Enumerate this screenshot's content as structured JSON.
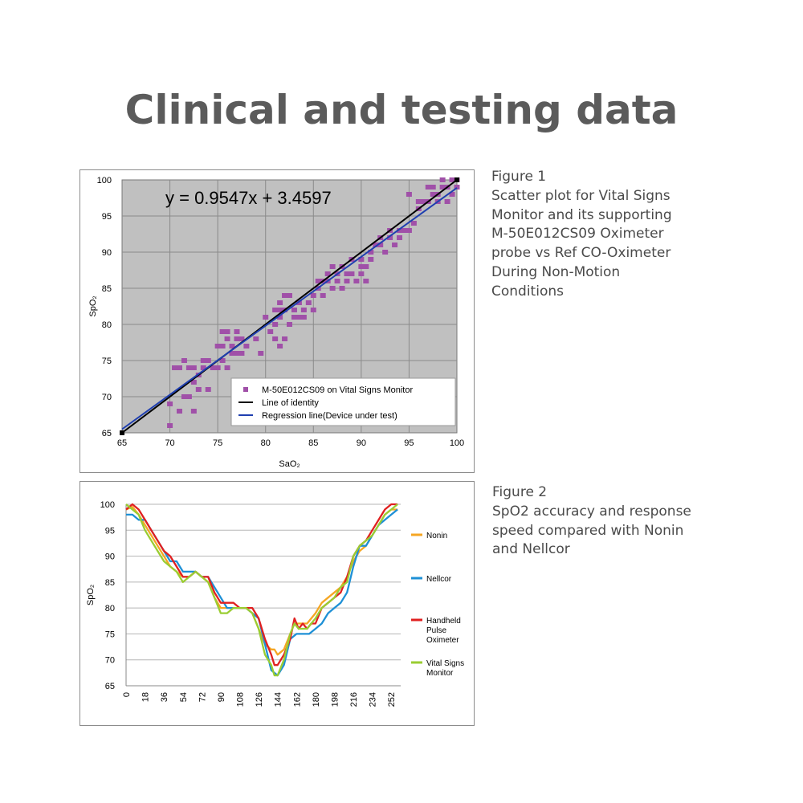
{
  "page": {
    "title": "Clinical and testing data"
  },
  "figure1": {
    "caption": {
      "label": "Figure 1",
      "lines": [
        "Scatter plot for Vital Signs",
        "Monitor and its supporting",
        "M-50E012CS09 Oximeter",
        "probe vs Ref CO-Oximeter",
        "During Non-Motion",
        "Conditions"
      ]
    }
  },
  "figure2": {
    "caption": {
      "label": "Figure 2",
      "lines": [
        "SpO2 accuracy and response",
        "speed compared with Nonin",
        "and Nellcor"
      ]
    }
  },
  "chart_data": [
    {
      "type": "scatter",
      "xlabel": "SaO₂",
      "ylabel": "SpO₂",
      "xlim": [
        65,
        100
      ],
      "ylim": [
        65,
        100
      ],
      "xticks": [
        65,
        70,
        75,
        80,
        85,
        90,
        95,
        100
      ],
      "yticks": [
        65,
        70,
        75,
        80,
        85,
        90,
        95,
        100
      ],
      "grid": true,
      "plot_background": "#c0c0c0",
      "equation": "y = 0.9547x + 3.4597",
      "legend_position": "bottom-right",
      "series": [
        {
          "name": "M-50E012CS09 on Vital Signs Monitor",
          "kind": "points",
          "color": "#a050a8",
          "points": [
            [
              70,
              66
            ],
            [
              70,
              69
            ],
            [
              70.5,
              74
            ],
            [
              71,
              68
            ],
            [
              71,
              74
            ],
            [
              71.5,
              70
            ],
            [
              71.5,
              75
            ],
            [
              72,
              70
            ],
            [
              72,
              74
            ],
            [
              72.5,
              68
            ],
            [
              72.5,
              74
            ],
            [
              72.5,
              72
            ],
            [
              73,
              73
            ],
            [
              73,
              71
            ],
            [
              73.5,
              74
            ],
            [
              73.5,
              75
            ],
            [
              74,
              71
            ],
            [
              74,
              75
            ],
            [
              74.5,
              74
            ],
            [
              75,
              74
            ],
            [
              75,
              77
            ],
            [
              75.5,
              77
            ],
            [
              75.5,
              75
            ],
            [
              75.5,
              79
            ],
            [
              76,
              74
            ],
            [
              76,
              78
            ],
            [
              76,
              79
            ],
            [
              76.5,
              76
            ],
            [
              76.5,
              77
            ],
            [
              77,
              79
            ],
            [
              77,
              78
            ],
            [
              77,
              76
            ],
            [
              77.5,
              76
            ],
            [
              77.5,
              78
            ],
            [
              78,
              77
            ],
            [
              79,
              78
            ],
            [
              79.5,
              76
            ],
            [
              80,
              81
            ],
            [
              80.5,
              79
            ],
            [
              81,
              80
            ],
            [
              81,
              82
            ],
            [
              81,
              78
            ],
            [
              81.5,
              81
            ],
            [
              81.5,
              83
            ],
            [
              81.5,
              77
            ],
            [
              81.5,
              82
            ],
            [
              82,
              84
            ],
            [
              82,
              82
            ],
            [
              82,
              78
            ],
            [
              82.5,
              84
            ],
            [
              82.5,
              80
            ],
            [
              83,
              81
            ],
            [
              83,
              82
            ],
            [
              83.5,
              83
            ],
            [
              83.5,
              81
            ],
            [
              84,
              81
            ],
            [
              84,
              82
            ],
            [
              84.5,
              83
            ],
            [
              85,
              84
            ],
            [
              85,
              82
            ],
            [
              85.5,
              85
            ],
            [
              85.5,
              86
            ],
            [
              86,
              86
            ],
            [
              86,
              84
            ],
            [
              86.5,
              86
            ],
            [
              86.5,
              87
            ],
            [
              87,
              85
            ],
            [
              87,
              88
            ],
            [
              87.5,
              86
            ],
            [
              87.5,
              87
            ],
            [
              88,
              88
            ],
            [
              88,
              85
            ],
            [
              88.5,
              87
            ],
            [
              88.5,
              86
            ],
            [
              89,
              89
            ],
            [
              89,
              87
            ],
            [
              89.5,
              86
            ],
            [
              90,
              88
            ],
            [
              90,
              89
            ],
            [
              90,
              87
            ],
            [
              90.5,
              88
            ],
            [
              90.5,
              86
            ],
            [
              91,
              90
            ],
            [
              91,
              89
            ],
            [
              91.5,
              91
            ],
            [
              92,
              92
            ],
            [
              92,
              91
            ],
            [
              92.5,
              90
            ],
            [
              93,
              93
            ],
            [
              93,
              92
            ],
            [
              93.5,
              91
            ],
            [
              94,
              92
            ],
            [
              94,
              93
            ],
            [
              94.5,
              93
            ],
            [
              95,
              93
            ],
            [
              95,
              98
            ],
            [
              95.5,
              94
            ],
            [
              96,
              96
            ],
            [
              96,
              97
            ],
            [
              96.5,
              97
            ],
            [
              97,
              97
            ],
            [
              97,
              99
            ],
            [
              97.5,
              98
            ],
            [
              97.5,
              99
            ],
            [
              98,
              97
            ],
            [
              98,
              98
            ],
            [
              98.5,
              99
            ],
            [
              98.5,
              100
            ],
            [
              99,
              97
            ],
            [
              99,
              99
            ],
            [
              99.5,
              98
            ],
            [
              99.5,
              100
            ],
            [
              100,
              99
            ],
            [
              100,
              100
            ]
          ]
        },
        {
          "name": "Line of identity",
          "kind": "line",
          "color": "#000000",
          "x": [
            65,
            100
          ],
          "y": [
            65,
            100
          ]
        },
        {
          "name": "Regression line(Device under test)",
          "kind": "line",
          "color": "#1f3fb0",
          "x": [
            65,
            100
          ],
          "y": [
            65.5,
            98.9
          ]
        }
      ]
    },
    {
      "type": "line",
      "xlabel": "",
      "ylabel": "SpO₂",
      "ylim": [
        65,
        100
      ],
      "yticks": [
        65,
        70,
        75,
        80,
        85,
        90,
        95,
        100
      ],
      "xticks": [
        0,
        18,
        36,
        54,
        72,
        90,
        108,
        126,
        144,
        162,
        180,
        198,
        216,
        234,
        252
      ],
      "xlim": [
        0,
        261
      ],
      "grid": true,
      "legend_position": "right",
      "series": [
        {
          "name": "Nonin",
          "color": "#f5a623",
          "x": [
            0,
            6,
            12,
            18,
            24,
            30,
            36,
            42,
            48,
            54,
            60,
            66,
            72,
            78,
            84,
            90,
            96,
            102,
            108,
            114,
            120,
            126,
            132,
            138,
            141,
            144,
            150,
            156,
            160,
            164,
            168,
            172,
            176,
            180,
            186,
            192,
            198,
            204,
            210,
            216,
            222,
            228,
            234,
            240,
            246,
            252,
            258
          ],
          "y": [
            99,
            99.5,
            98,
            96,
            94,
            92,
            90,
            88,
            87,
            86,
            86,
            87,
            86,
            85,
            82,
            80,
            80,
            80,
            80,
            80,
            79,
            76,
            73,
            72,
            72,
            71,
            72,
            75,
            77,
            77,
            77,
            77,
            78,
            79,
            81,
            82,
            83,
            84,
            86,
            89,
            91,
            92,
            94,
            96,
            98,
            99,
            99
          ]
        },
        {
          "name": "Nellcor",
          "color": "#1e90d6",
          "x": [
            0,
            6,
            12,
            18,
            24,
            30,
            36,
            42,
            48,
            54,
            60,
            66,
            72,
            78,
            84,
            90,
            96,
            102,
            108,
            114,
            120,
            126,
            132,
            138,
            144,
            150,
            156,
            162,
            168,
            174,
            180,
            186,
            192,
            198,
            204,
            210,
            216,
            222,
            228,
            234,
            240,
            246,
            252,
            258
          ],
          "y": [
            98,
            98,
            97,
            97,
            95,
            93,
            91,
            89,
            89,
            87,
            87,
            87,
            86,
            86,
            84,
            82,
            80,
            80,
            80,
            80,
            79,
            78,
            73,
            68,
            67,
            69,
            74,
            75,
            75,
            75,
            76,
            77,
            79,
            80,
            81,
            83,
            88,
            92,
            92,
            94,
            96,
            97,
            98,
            99
          ]
        },
        {
          "name": "Handheld Pulse Oximeter",
          "color": "#e02020",
          "x": [
            0,
            6,
            12,
            18,
            24,
            30,
            36,
            42,
            48,
            54,
            60,
            66,
            72,
            78,
            84,
            90,
            96,
            102,
            108,
            114,
            120,
            126,
            132,
            138,
            141,
            144,
            150,
            156,
            160,
            164,
            168,
            172,
            176,
            180,
            186,
            192,
            198,
            204,
            210,
            216,
            222,
            228,
            234,
            240,
            246,
            252,
            258
          ],
          "y": [
            99,
            100,
            99,
            97,
            95,
            93,
            91,
            90,
            88,
            86,
            86,
            87,
            86,
            86,
            83,
            81,
            81,
            81,
            80,
            80,
            80,
            78,
            74,
            71,
            69,
            69,
            71,
            74,
            78,
            76,
            77,
            76,
            77,
            77,
            80,
            81,
            82,
            83,
            86,
            90,
            92,
            93,
            95,
            97,
            99,
            100,
            100
          ]
        },
        {
          "name": "Vital Signs Monitor",
          "color": "#9acd32",
          "x": [
            0,
            6,
            12,
            18,
            24,
            30,
            36,
            42,
            48,
            54,
            60,
            66,
            72,
            78,
            84,
            90,
            96,
            102,
            108,
            114,
            120,
            126,
            132,
            138,
            141,
            144,
            150,
            156,
            160,
            164,
            168,
            172,
            176,
            180,
            186,
            192,
            198,
            204,
            210,
            216,
            222,
            228,
            234,
            240,
            246,
            252,
            258
          ],
          "y": [
            100,
            99,
            98,
            95,
            93,
            91,
            89,
            88,
            87,
            85,
            86,
            87,
            86,
            85,
            82,
            79,
            79,
            80,
            80,
            80,
            79,
            76,
            71,
            69,
            67,
            67,
            70,
            75,
            77,
            76,
            76,
            76,
            77,
            78,
            80,
            81,
            82,
            84,
            85,
            90,
            92,
            93,
            94,
            96,
            98,
            99,
            100
          ]
        }
      ]
    }
  ]
}
